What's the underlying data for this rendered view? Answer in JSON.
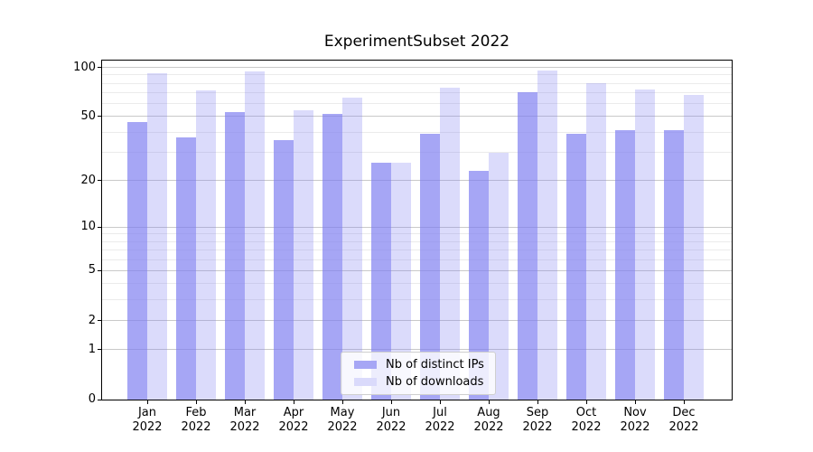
{
  "chart_data": {
    "type": "bar",
    "title": "ExperimentSubset 2022",
    "categories": [
      {
        "month": "Jan",
        "year": "2022"
      },
      {
        "month": "Feb",
        "year": "2022"
      },
      {
        "month": "Mar",
        "year": "2022"
      },
      {
        "month": "Apr",
        "year": "2022"
      },
      {
        "month": "May",
        "year": "2022"
      },
      {
        "month": "Jun",
        "year": "2022"
      },
      {
        "month": "Jul",
        "year": "2022"
      },
      {
        "month": "Aug",
        "year": "2022"
      },
      {
        "month": "Sep",
        "year": "2022"
      },
      {
        "month": "Oct",
        "year": "2022"
      },
      {
        "month": "Nov",
        "year": "2022"
      },
      {
        "month": "Dec",
        "year": "2022"
      }
    ],
    "series": [
      {
        "name": "Nb of distinct IPs",
        "slug": "distinct-ips",
        "color": "rgba(124,124,240,0.68)",
        "color_solid": "#a6a6f5",
        "values": [
          46,
          37,
          53,
          36,
          52,
          26,
          39,
          23,
          71,
          39,
          41,
          41
        ]
      },
      {
        "name": "Nb of downloads",
        "slug": "downloads",
        "color": "rgba(124,124,240,0.28)",
        "color_solid": "#dadafb",
        "values": [
          92,
          72,
          94,
          55,
          65,
          26,
          75,
          30,
          96,
          80,
          73,
          68
        ]
      }
    ],
    "yscale": "symlog-log1p",
    "ylim": [
      0,
      110
    ],
    "yticks": [
      100,
      50,
      20,
      10,
      5,
      2,
      1,
      0
    ],
    "yticks_minor": [
      90,
      80,
      70,
      60,
      40,
      30,
      9,
      8,
      7,
      6,
      4,
      3
    ],
    "xlabel": "",
    "ylabel": "",
    "grid": true,
    "legend_position": "lower-center"
  },
  "colors": {
    "bar_base": "#7c7cf0",
    "grid_major": "#c9c9c9",
    "grid_minor": "#ebebeb",
    "spine": "#000000",
    "background": "#ffffff"
  }
}
